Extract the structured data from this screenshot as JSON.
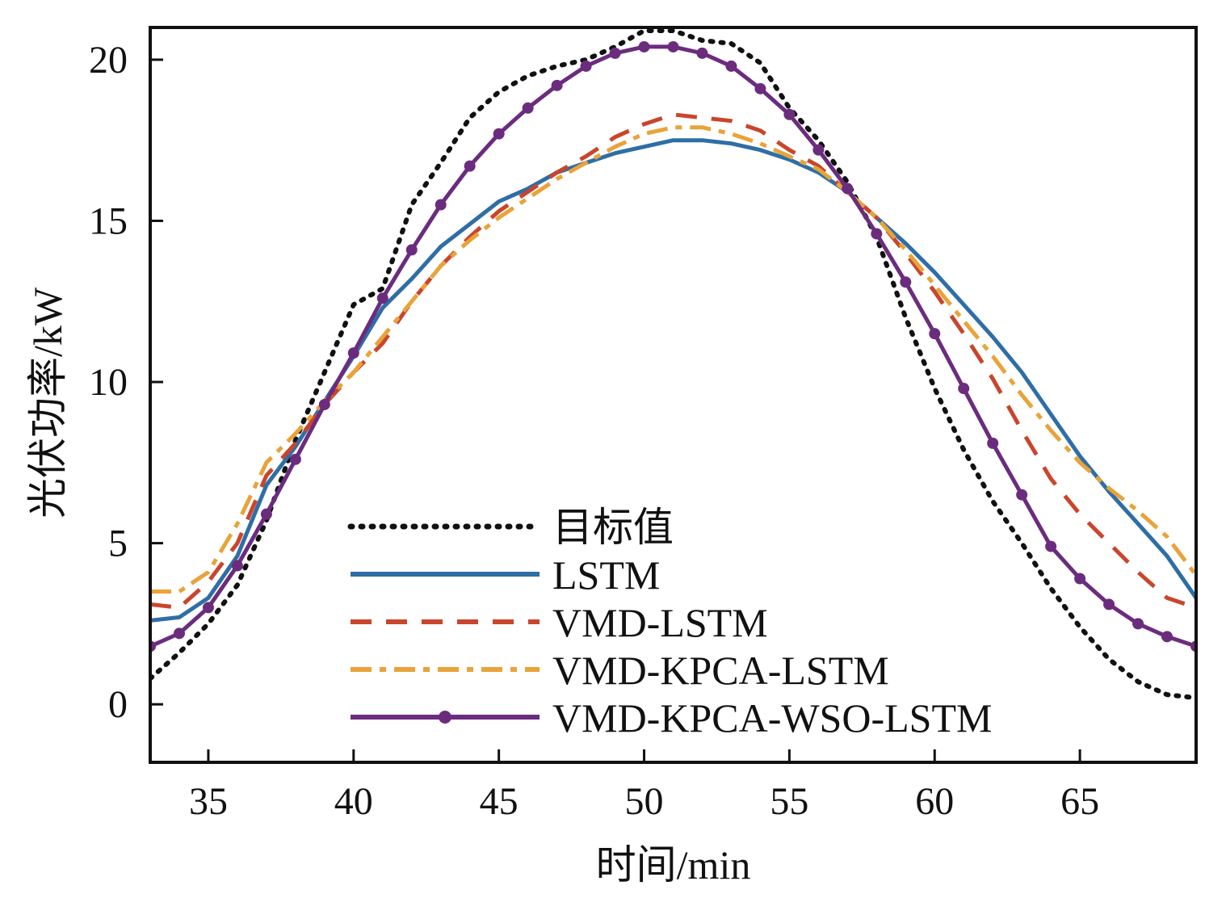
{
  "chart_data": {
    "type": "line",
    "xlabel": "时间/min",
    "ylabel": "光伏功率/kW",
    "xlim": [
      33,
      69
    ],
    "ylim": [
      -1.8,
      21
    ],
    "xticks": [
      35,
      40,
      45,
      50,
      55,
      60,
      65
    ],
    "yticks": [
      0,
      5,
      10,
      15,
      20
    ],
    "grid": false,
    "legend_position": "bottom-center",
    "x": [
      33,
      34,
      35,
      36,
      37,
      38,
      39,
      40,
      41,
      42,
      43,
      44,
      45,
      46,
      47,
      48,
      49,
      50,
      51,
      52,
      53,
      54,
      55,
      56,
      57,
      58,
      59,
      60,
      61,
      62,
      63,
      64,
      65,
      66,
      67,
      68,
      69
    ],
    "series": [
      {
        "name": "目标值",
        "color": "#111111",
        "style": "dotted",
        "values": [
          0.8,
          1.6,
          2.5,
          3.7,
          5.7,
          8.2,
          10.3,
          12.4,
          12.9,
          15.5,
          16.8,
          18.2,
          19.0,
          19.5,
          19.8,
          20.0,
          20.4,
          20.9,
          20.9,
          20.6,
          20.5,
          19.9,
          18.5,
          17.5,
          16.2,
          14.5,
          12.0,
          9.8,
          7.9,
          6.3,
          5.0,
          3.6,
          2.4,
          1.4,
          0.7,
          0.3,
          0.2
        ]
      },
      {
        "name": "LSTM",
        "color": "#2f6ea5",
        "style": "solid",
        "values": [
          2.6,
          2.7,
          3.3,
          4.6,
          6.8,
          8.0,
          9.4,
          10.8,
          12.3,
          13.2,
          14.2,
          14.9,
          15.6,
          16.0,
          16.5,
          16.8,
          17.1,
          17.3,
          17.5,
          17.5,
          17.4,
          17.2,
          16.9,
          16.5,
          15.9,
          15.1,
          14.3,
          13.4,
          12.4,
          11.4,
          10.3,
          9.0,
          7.7,
          6.6,
          5.6,
          4.6,
          3.3
        ]
      },
      {
        "name": "VMD-LSTM",
        "color": "#c9452c",
        "style": "dashed",
        "values": [
          3.1,
          3.0,
          3.8,
          5.0,
          7.1,
          8.1,
          9.3,
          10.3,
          11.2,
          12.5,
          13.6,
          14.5,
          15.3,
          15.9,
          16.5,
          17.0,
          17.6,
          18.0,
          18.3,
          18.2,
          18.1,
          17.8,
          17.2,
          16.7,
          15.9,
          15.1,
          14.0,
          12.8,
          11.5,
          10.1,
          8.5,
          7.0,
          5.9,
          5.0,
          4.1,
          3.3,
          3.0
        ]
      },
      {
        "name": "VMD-KPCA-LSTM",
        "color": "#e8a33a",
        "style": "dashdot",
        "values": [
          3.5,
          3.5,
          4.1,
          5.6,
          7.5,
          8.4,
          9.4,
          10.3,
          11.4,
          12.5,
          13.6,
          14.4,
          15.1,
          15.7,
          16.3,
          16.8,
          17.3,
          17.7,
          17.9,
          17.9,
          17.7,
          17.4,
          17.0,
          16.6,
          15.9,
          15.1,
          14.1,
          13.0,
          11.9,
          10.8,
          9.6,
          8.5,
          7.5,
          6.7,
          6.0,
          5.2,
          4.0
        ]
      },
      {
        "name": "VMD-KPCA-WSO-LSTM",
        "color": "#6b2c7e",
        "style": "solid-marker",
        "values": [
          1.8,
          2.2,
          3.0,
          4.3,
          5.9,
          7.6,
          9.3,
          10.9,
          12.6,
          14.1,
          15.5,
          16.7,
          17.7,
          18.5,
          19.2,
          19.8,
          20.2,
          20.4,
          20.4,
          20.2,
          19.8,
          19.1,
          18.3,
          17.2,
          16.0,
          14.6,
          13.1,
          11.5,
          9.8,
          8.1,
          6.5,
          4.9,
          3.9,
          3.1,
          2.5,
          2.1,
          1.8
        ]
      }
    ]
  }
}
